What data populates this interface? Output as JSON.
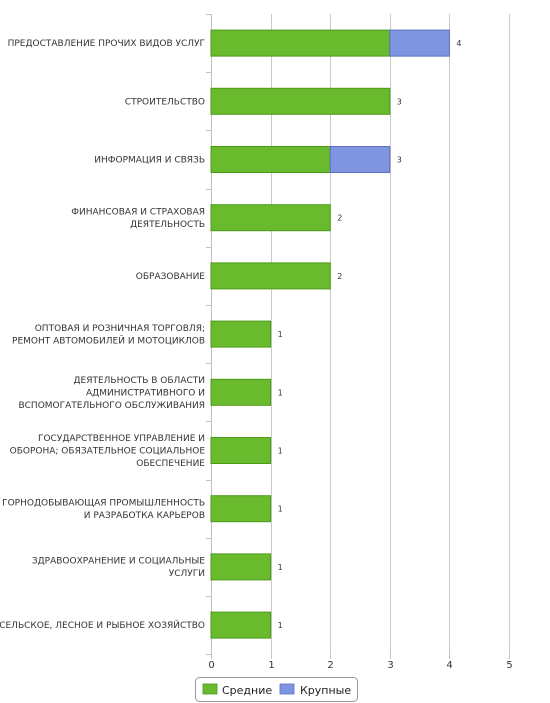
{
  "chart_data": {
    "type": "bar",
    "orientation": "horizontal",
    "stacked": true,
    "categories": [
      "ПРЕДОСТАВЛЕНИЕ ПРОЧИХ ВИДОВ УСЛУГ",
      "СТРОИТЕЛЬСТВО",
      "ИНФОРМАЦИЯ И СВЯЗЬ",
      "ФИНАНСОВАЯ И СТРАХОВАЯ ДЕЯТЕЛЬНОСТЬ",
      "ОБРАЗОВАНИЕ",
      "ОПТОВАЯ И РОЗНИЧНАЯ ТОРГОВЛЯ; РЕМОНТ АВТОМОБИЛЕЙ И МОТОЦИКЛОВ",
      "ДЕЯТЕЛЬНОСТЬ В ОБЛАСТИ АДМИНИСТРАТИВНОГО И ВСПОМОГАТЕЛЬНОГО ОБСЛУЖИВАНИЯ",
      "ГОСУДАРСТВЕННОЕ УПРАВЛЕНИЕ И ОБОРОНА; ОБЯЗАТЕЛЬНОЕ СОЦИАЛЬНОЕ ОБЕСПЕЧЕНИЕ",
      "ГОРНОДОБЫВАЮЩАЯ ПРОМЫШЛЕННОСТЬ И РАЗРАБОТКА КАРЬЕРОВ",
      "ЗДРАВООХРАНЕНИЕ И СОЦИАЛЬНЫЕ УСЛУГИ",
      "СЕЛЬСКОЕ, ЛЕСНОЕ И РЫБНОЕ ХОЗЯЙСТВО"
    ],
    "category_lines": [
      [
        "ПРЕДОСТАВЛЕНИЕ ПРОЧИХ ВИДОВ УСЛУГ"
      ],
      [
        "СТРОИТЕЛЬСТВО"
      ],
      [
        "ИНФОРМАЦИЯ И СВЯЗЬ"
      ],
      [
        "ФИНАНСОВАЯ И СТРАХОВАЯ",
        "ДЕЯТЕЛЬНОСТЬ"
      ],
      [
        "ОБРАЗОВАНИЕ"
      ],
      [
        "ОПТОВАЯ И РОЗНИЧНАЯ ТОРГОВЛЯ;",
        "РЕМОНТ АВТОМОБИЛЕЙ И МОТОЦИКЛОВ"
      ],
      [
        "ДЕЯТЕЛЬНОСТЬ В ОБЛАСТИ",
        "АДМИНИСТРАТИВНОГО И",
        "ВСПОМОГАТЕЛЬНОГО ОБСЛУЖИВАНИЯ"
      ],
      [
        "ГОСУДАРСТВЕННОЕ УПРАВЛЕНИЕ И",
        "ОБОРОНА; ОБЯЗАТЕЛЬНОЕ СОЦИАЛЬНОЕ",
        "ОБЕСПЕЧЕНИЕ"
      ],
      [
        "ГОРНОДОБЫВАЮЩАЯ ПРОМЫШЛЕННОСТЬ",
        "И РАЗРАБОТКА КАРЬЕРОВ"
      ],
      [
        "ЗДРАВООХРАНЕНИЕ И СОЦИАЛЬНЫЕ",
        "УСЛУГИ"
      ],
      [
        "СЕЛЬСКОЕ, ЛЕСНОЕ И РЫБНОЕ ХОЗЯЙСТВО"
      ]
    ],
    "series": [
      {
        "name": "Средние",
        "color": "#6aba2e",
        "values": [
          3,
          3,
          2,
          2,
          2,
          1,
          1,
          1,
          1,
          1,
          1
        ]
      },
      {
        "name": "Крупные",
        "color": "#8095e0",
        "values": [
          1,
          0,
          1,
          0,
          0,
          0,
          0,
          0,
          0,
          0,
          0
        ]
      }
    ],
    "data_labels": [
      4,
      3,
      3,
      2,
      2,
      1,
      1,
      1,
      1,
      1,
      1
    ],
    "xlim": [
      0,
      5
    ],
    "x_ticks": [
      "0",
      "1",
      "2",
      "3",
      "4",
      "5"
    ],
    "grid": true,
    "legend_position": "bottom",
    "title": "",
    "xlabel": "",
    "ylabel": ""
  }
}
